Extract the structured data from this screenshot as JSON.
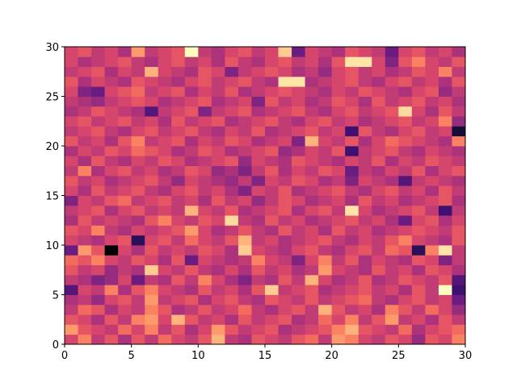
{
  "chart_data": {
    "type": "heatmap",
    "colormap": "magma",
    "xlim": [
      0,
      30
    ],
    "ylim": [
      0,
      30
    ],
    "xticks": [
      0,
      5,
      10,
      15,
      20,
      25,
      30
    ],
    "yticks": [
      0,
      5,
      10,
      15,
      20,
      25,
      30
    ],
    "values": [
      [
        0.55,
        0.7,
        0.5,
        0.6,
        0.45,
        0.6,
        0.5,
        0.65,
        0.55,
        0.5,
        0.6,
        0.8,
        0.5,
        0.45,
        0.6,
        0.55,
        0.5,
        0.6,
        0.65,
        0.5,
        0.75,
        0.7,
        0.55,
        0.5,
        0.6,
        0.55,
        0.4,
        0.6,
        0.55,
        0.7
      ],
      [
        0.75,
        0.6,
        0.55,
        0.5,
        0.65,
        0.55,
        0.7,
        0.5,
        0.6,
        0.45,
        0.55,
        0.75,
        0.6,
        0.5,
        0.55,
        0.6,
        0.45,
        0.5,
        0.55,
        0.6,
        0.7,
        0.8,
        0.6,
        0.55,
        0.5,
        0.65,
        0.45,
        0.55,
        0.6,
        0.65
      ],
      [
        0.6,
        0.55,
        0.45,
        0.6,
        0.5,
        0.7,
        0.75,
        0.55,
        0.8,
        0.6,
        0.5,
        0.55,
        0.45,
        0.6,
        0.5,
        0.55,
        0.6,
        0.45,
        0.5,
        0.65,
        0.55,
        0.7,
        0.5,
        0.6,
        0.75,
        0.5,
        0.55,
        0.45,
        0.6,
        0.5
      ],
      [
        0.5,
        0.65,
        0.6,
        0.45,
        0.55,
        0.5,
        0.7,
        0.6,
        0.45,
        0.5,
        0.6,
        0.5,
        0.55,
        0.65,
        0.5,
        0.45,
        0.55,
        0.6,
        0.5,
        0.8,
        0.6,
        0.5,
        0.55,
        0.45,
        0.7,
        0.6,
        0.5,
        0.65,
        0.55,
        0.4
      ],
      [
        0.45,
        0.5,
        0.4,
        0.55,
        0.6,
        0.5,
        0.75,
        0.5,
        0.55,
        0.6,
        0.45,
        0.55,
        0.6,
        0.5,
        0.45,
        0.6,
        0.55,
        0.5,
        0.6,
        0.5,
        0.55,
        0.6,
        0.65,
        0.5,
        0.45,
        0.55,
        0.6,
        0.5,
        0.55,
        0.3
      ],
      [
        0.25,
        0.55,
        0.5,
        0.7,
        0.45,
        0.6,
        0.7,
        0.55,
        0.5,
        0.45,
        0.6,
        0.5,
        0.55,
        0.45,
        0.6,
        0.85,
        0.5,
        0.55,
        0.6,
        0.45,
        0.5,
        0.55,
        0.6,
        0.5,
        0.55,
        0.45,
        0.6,
        0.5,
        0.95,
        0.2
      ],
      [
        0.5,
        0.45,
        0.35,
        0.4,
        0.55,
        0.3,
        0.5,
        0.45,
        0.6,
        0.5,
        0.7,
        0.55,
        0.45,
        0.35,
        0.5,
        0.45,
        0.6,
        0.5,
        0.8,
        0.55,
        0.45,
        0.5,
        0.6,
        0.45,
        0.5,
        0.6,
        0.55,
        0.5,
        0.6,
        0.25
      ],
      [
        0.6,
        0.5,
        0.55,
        0.4,
        0.5,
        0.45,
        0.85,
        0.55,
        0.5,
        0.6,
        0.5,
        0.45,
        0.55,
        0.45,
        0.6,
        0.5,
        0.55,
        0.45,
        0.5,
        0.75,
        0.55,
        0.5,
        0.45,
        0.6,
        0.5,
        0.55,
        0.45,
        0.6,
        0.55,
        0.45
      ],
      [
        0.65,
        0.6,
        0.7,
        0.55,
        0.5,
        0.6,
        0.55,
        0.45,
        0.6,
        0.3,
        0.55,
        0.5,
        0.45,
        0.5,
        0.7,
        0.55,
        0.5,
        0.35,
        0.55,
        0.7,
        0.5,
        0.6,
        0.45,
        0.55,
        0.5,
        0.45,
        0.6,
        0.55,
        0.35,
        0.5
      ],
      [
        0.3,
        0.75,
        0.6,
        0.0,
        0.55,
        0.45,
        0.6,
        0.5,
        0.55,
        0.5,
        0.6,
        0.55,
        0.45,
        0.85,
        0.55,
        0.5,
        0.45,
        0.55,
        0.6,
        0.5,
        0.45,
        0.55,
        0.6,
        0.5,
        0.65,
        0.6,
        0.15,
        0.7,
        0.9,
        0.5
      ],
      [
        0.55,
        0.5,
        0.45,
        0.55,
        0.6,
        0.15,
        0.55,
        0.6,
        0.5,
        0.65,
        0.55,
        0.5,
        0.6,
        0.8,
        0.5,
        0.55,
        0.45,
        0.5,
        0.55,
        0.6,
        0.5,
        0.45,
        0.55,
        0.5,
        0.6,
        0.7,
        0.55,
        0.5,
        0.45,
        0.6
      ],
      [
        0.6,
        0.55,
        0.7,
        0.5,
        0.45,
        0.55,
        0.5,
        0.55,
        0.6,
        0.75,
        0.55,
        0.45,
        0.5,
        0.6,
        0.5,
        0.45,
        0.6,
        0.5,
        0.55,
        0.45,
        0.6,
        0.5,
        0.55,
        0.45,
        0.5,
        0.55,
        0.6,
        0.55,
        0.5,
        0.6
      ],
      [
        0.45,
        0.6,
        0.5,
        0.55,
        0.5,
        0.45,
        0.6,
        0.7,
        0.55,
        0.5,
        0.6,
        0.55,
        0.88,
        0.5,
        0.45,
        0.6,
        0.5,
        0.55,
        0.45,
        0.5,
        0.55,
        0.6,
        0.5,
        0.55,
        0.45,
        0.3,
        0.55,
        0.6,
        0.45,
        0.55
      ],
      [
        0.5,
        0.55,
        0.6,
        0.45,
        0.55,
        0.6,
        0.5,
        0.55,
        0.5,
        0.8,
        0.55,
        0.5,
        0.6,
        0.45,
        0.5,
        0.55,
        0.6,
        0.45,
        0.55,
        0.6,
        0.5,
        0.9,
        0.55,
        0.45,
        0.5,
        0.55,
        0.6,
        0.5,
        0.2,
        0.5
      ],
      [
        0.35,
        0.55,
        0.5,
        0.6,
        0.65,
        0.5,
        0.55,
        0.6,
        0.5,
        0.55,
        0.45,
        0.6,
        0.5,
        0.55,
        0.4,
        0.5,
        0.6,
        0.55,
        0.45,
        0.5,
        0.55,
        0.45,
        0.6,
        0.5,
        0.55,
        0.45,
        0.5,
        0.55,
        0.6,
        0.45
      ],
      [
        0.55,
        0.45,
        0.6,
        0.5,
        0.55,
        0.6,
        0.5,
        0.45,
        0.55,
        0.6,
        0.5,
        0.55,
        0.45,
        0.35,
        0.55,
        0.5,
        0.6,
        0.45,
        0.5,
        0.55,
        0.6,
        0.5,
        0.45,
        0.55,
        0.6,
        0.5,
        0.55,
        0.45,
        0.6,
        0.5
      ],
      [
        0.6,
        0.5,
        0.55,
        0.45,
        0.5,
        0.55,
        0.6,
        0.5,
        0.4,
        0.55,
        0.5,
        0.45,
        0.4,
        0.5,
        0.35,
        0.55,
        0.5,
        0.6,
        0.55,
        0.45,
        0.5,
        0.35,
        0.55,
        0.5,
        0.45,
        0.25,
        0.5,
        0.55,
        0.5,
        0.45
      ],
      [
        0.5,
        0.7,
        0.45,
        0.55,
        0.6,
        0.5,
        0.55,
        0.45,
        0.5,
        0.6,
        0.55,
        0.4,
        0.45,
        0.35,
        0.5,
        0.6,
        0.45,
        0.55,
        0.5,
        0.6,
        0.55,
        0.3,
        0.5,
        0.45,
        0.55,
        0.5,
        0.6,
        0.45,
        0.55,
        0.6
      ],
      [
        0.55,
        0.45,
        0.6,
        0.5,
        0.45,
        0.55,
        0.5,
        0.6,
        0.55,
        0.45,
        0.5,
        0.55,
        0.6,
        0.4,
        0.55,
        0.5,
        0.45,
        0.6,
        0.55,
        0.5,
        0.45,
        0.55,
        0.5,
        0.6,
        0.45,
        0.55,
        0.5,
        0.6,
        0.55,
        0.5
      ],
      [
        0.45,
        0.55,
        0.5,
        0.6,
        0.55,
        0.65,
        0.6,
        0.55,
        0.45,
        0.5,
        0.6,
        0.55,
        0.45,
        0.5,
        0.55,
        0.6,
        0.4,
        0.45,
        0.55,
        0.5,
        0.6,
        0.2,
        0.5,
        0.55,
        0.6,
        0.5,
        0.45,
        0.55,
        0.5,
        0.45
      ],
      [
        0.6,
        0.5,
        0.55,
        0.45,
        0.6,
        0.7,
        0.5,
        0.55,
        0.6,
        0.45,
        0.55,
        0.5,
        0.6,
        0.55,
        0.45,
        0.5,
        0.55,
        0.35,
        0.8,
        0.55,
        0.5,
        0.6,
        0.45,
        0.55,
        0.65,
        0.6,
        0.55,
        0.5,
        0.45,
        0.7
      ],
      [
        0.5,
        0.55,
        0.6,
        0.5,
        0.45,
        0.55,
        0.6,
        0.5,
        0.55,
        0.6,
        0.5,
        0.45,
        0.55,
        0.5,
        0.6,
        0.45,
        0.5,
        0.55,
        0.6,
        0.5,
        0.55,
        0.2,
        0.6,
        0.5,
        0.45,
        0.55,
        0.6,
        0.5,
        0.55,
        0.1
      ],
      [
        0.55,
        0.6,
        0.5,
        0.55,
        0.6,
        0.5,
        0.55,
        0.45,
        0.6,
        0.5,
        0.55,
        0.6,
        0.45,
        0.5,
        0.55,
        0.6,
        0.5,
        0.45,
        0.55,
        0.6,
        0.5,
        0.55,
        0.45,
        0.5,
        0.55,
        0.6,
        0.5,
        0.55,
        0.7,
        0.4
      ],
      [
        0.45,
        0.5,
        0.6,
        0.55,
        0.5,
        0.45,
        0.25,
        0.5,
        0.55,
        0.6,
        0.35,
        0.5,
        0.55,
        0.6,
        0.45,
        0.5,
        0.55,
        0.6,
        0.5,
        0.45,
        0.55,
        0.6,
        0.5,
        0.55,
        0.6,
        0.88,
        0.55,
        0.45,
        0.6,
        0.5
      ],
      [
        0.5,
        0.45,
        0.4,
        0.5,
        0.55,
        0.6,
        0.55,
        0.45,
        0.5,
        0.55,
        0.6,
        0.45,
        0.5,
        0.55,
        0.35,
        0.6,
        0.5,
        0.55,
        0.45,
        0.5,
        0.6,
        0.55,
        0.45,
        0.6,
        0.5,
        0.55,
        0.6,
        0.5,
        0.55,
        0.45
      ],
      [
        0.55,
        0.35,
        0.3,
        0.55,
        0.6,
        0.65,
        0.5,
        0.55,
        0.6,
        0.45,
        0.55,
        0.5,
        0.6,
        0.45,
        0.5,
        0.55,
        0.6,
        0.55,
        0.5,
        0.45,
        0.55,
        0.5,
        0.6,
        0.55,
        0.5,
        0.45,
        0.55,
        0.6,
        0.4,
        0.5
      ],
      [
        0.6,
        0.45,
        0.55,
        0.5,
        0.45,
        0.6,
        0.55,
        0.5,
        0.45,
        0.55,
        0.6,
        0.5,
        0.55,
        0.6,
        0.5,
        0.45,
        0.9,
        0.9,
        0.45,
        0.5,
        0.55,
        0.6,
        0.5,
        0.45,
        0.55,
        0.6,
        0.5,
        0.55,
        0.45,
        0.6
      ],
      [
        0.5,
        0.55,
        0.6,
        0.45,
        0.55,
        0.5,
        0.8,
        0.55,
        0.5,
        0.45,
        0.6,
        0.55,
        0.35,
        0.5,
        0.55,
        0.6,
        0.55,
        0.45,
        0.5,
        0.4,
        0.55,
        0.6,
        0.5,
        0.55,
        0.45,
        0.5,
        0.6,
        0.55,
        0.7,
        0.5
      ],
      [
        0.55,
        0.45,
        0.5,
        0.55,
        0.6,
        0.5,
        0.45,
        0.55,
        0.6,
        0.5,
        0.55,
        0.45,
        0.6,
        0.5,
        0.45,
        0.55,
        0.6,
        0.5,
        0.55,
        0.45,
        0.6,
        0.9,
        0.9,
        0.55,
        0.35,
        0.6,
        0.7,
        0.55,
        0.5,
        0.6
      ],
      [
        0.55,
        0.6,
        0.5,
        0.55,
        0.45,
        0.75,
        0.5,
        0.55,
        0.6,
        0.95,
        0.5,
        0.45,
        0.55,
        0.6,
        0.5,
        0.55,
        0.85,
        0.3,
        0.55,
        0.5,
        0.45,
        0.6,
        0.55,
        0.5,
        0.3,
        0.55,
        0.6,
        0.5,
        0.55,
        0.45
      ]
    ]
  }
}
